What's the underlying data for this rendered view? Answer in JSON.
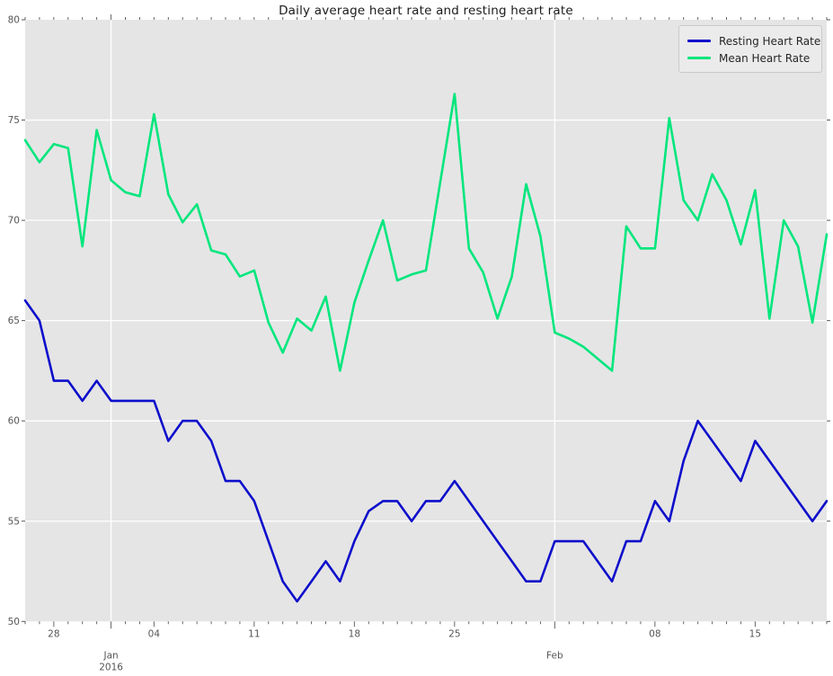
{
  "title": "Daily average heart rate and resting heart rate",
  "colors": {
    "plot_background": "#e5e5e5",
    "grid": "#ffffff",
    "tick": "#555555",
    "tick_label": "#555555",
    "title": "#1a1a1a",
    "legend_background": "#ebebeb",
    "legend_border": "#c9c9c9"
  },
  "chart_data": {
    "type": "line",
    "title": "Daily average heart rate and resting heart rate",
    "xlabel": "",
    "ylabel": "",
    "ylim": [
      50,
      80
    ],
    "yticks": [
      50,
      55,
      60,
      65,
      70,
      75,
      80
    ],
    "grid": "on",
    "legend_position": "upper right",
    "dates": [
      "2015-12-26",
      "2015-12-27",
      "2015-12-28",
      "2015-12-29",
      "2015-12-30",
      "2015-12-31",
      "2016-01-01",
      "2016-01-02",
      "2016-01-03",
      "2016-01-04",
      "2016-01-05",
      "2016-01-06",
      "2016-01-07",
      "2016-01-08",
      "2016-01-09",
      "2016-01-10",
      "2016-01-11",
      "2016-01-12",
      "2016-01-13",
      "2016-01-14",
      "2016-01-15",
      "2016-01-16",
      "2016-01-17",
      "2016-01-18",
      "2016-01-19",
      "2016-01-20",
      "2016-01-21",
      "2016-01-22",
      "2016-01-23",
      "2016-01-24",
      "2016-01-25",
      "2016-01-26",
      "2016-01-27",
      "2016-01-28",
      "2016-01-29",
      "2016-01-30",
      "2016-01-31",
      "2016-02-01",
      "2016-02-02",
      "2016-02-03",
      "2016-02-04",
      "2016-02-05",
      "2016-02-06",
      "2016-02-07",
      "2016-02-08",
      "2016-02-09",
      "2016-02-10",
      "2016-02-11",
      "2016-02-12",
      "2016-02-13",
      "2016-02-14",
      "2016-02-15",
      "2016-02-16",
      "2016-02-17",
      "2016-02-18",
      "2016-02-19",
      "2016-02-20"
    ],
    "series": [
      {
        "name": "Resting Heart Rate",
        "color": "#0d0dcb",
        "values": [
          66,
          65,
          62,
          62,
          61,
          62,
          61,
          61,
          61,
          61,
          59,
          60,
          60,
          59,
          57,
          57,
          56,
          54,
          52,
          51,
          52,
          53,
          52,
          54,
          55.5,
          56,
          56,
          55,
          56,
          56,
          57,
          56,
          55,
          54,
          53,
          52,
          52,
          54,
          54,
          54,
          53,
          52,
          54,
          54,
          56,
          55,
          58,
          60,
          59,
          58,
          57,
          59,
          58,
          57,
          56,
          55,
          56
        ]
      },
      {
        "name": "Mean Heart Rate",
        "color": "#00e67d",
        "values": [
          74,
          72.9,
          73.8,
          73.6,
          68.7,
          74.5,
          72,
          71.4,
          71.2,
          75.3,
          71.3,
          69.9,
          70.8,
          68.5,
          68.3,
          67.2,
          67.5,
          64.9,
          63.4,
          65.1,
          64.5,
          66.2,
          62.5,
          65.9,
          68,
          70,
          67,
          67.3,
          67.5,
          71.9,
          76.3,
          68.6,
          67.4,
          65.1,
          67.2,
          71.8,
          69.2,
          64.4,
          64.1,
          63.7,
          63.1,
          62.5,
          69.7,
          68.6,
          68.6,
          75.1,
          71,
          70,
          72.3,
          71,
          68.8,
          71.5,
          65.1,
          70,
          68.7,
          64.9,
          69.3
        ]
      }
    ],
    "x_axis": {
      "week_ticks": [
        {
          "day_index": 2,
          "label": "28"
        },
        {
          "day_index": 9,
          "label": "04"
        },
        {
          "day_index": 16,
          "label": "11"
        },
        {
          "day_index": 23,
          "label": "18"
        },
        {
          "day_index": 30,
          "label": "25"
        },
        {
          "day_index": 44,
          "label": "08"
        },
        {
          "day_index": 51,
          "label": "15"
        }
      ],
      "month_ticks": [
        {
          "day_index": 6,
          "label": "Jan",
          "sublabel": "2016"
        },
        {
          "day_index": 37,
          "label": "Feb",
          "sublabel": ""
        }
      ]
    }
  }
}
